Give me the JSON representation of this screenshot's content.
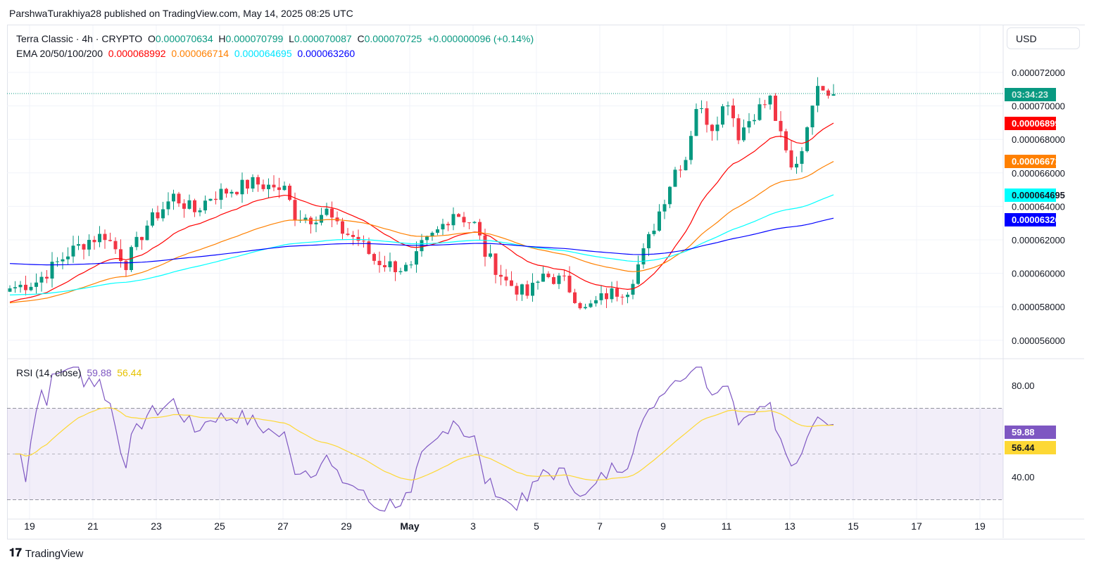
{
  "header": {
    "published": "ParshwaTurakhiya28 published on TradingView.com, May 14, 2025 08:25 UTC"
  },
  "legend": {
    "symbol": "Terra Classic · 4h · CRYPTO",
    "o_label": "O",
    "o": "0.000070634",
    "h_label": "H",
    "h": "0.000070799",
    "l_label": "L",
    "l": "0.000070087",
    "c_label": "C",
    "c": "0.000070725",
    "change": "+0.000000096 (+0.14%)",
    "ema_label": "EMA 20/50/100/200",
    "ema20": "0.000068992",
    "ema50": "0.000066714",
    "ema100": "0.000064695",
    "ema200": "0.000063260"
  },
  "currency": "USD",
  "countdown": "03:34:23",
  "colors": {
    "up": "#089981",
    "down": "#f23645",
    "ema20": "#ff0000",
    "ema50": "#ff8000",
    "ema100": "#00ffff",
    "ema200": "#0000ff",
    "rsi": "#7e57c2",
    "rsi_ma": "#fdd835"
  },
  "rsi": {
    "label": "RSI (14, close)",
    "value": "59.88",
    "ma": "56.44",
    "ticks": [
      "80.00",
      "40.00"
    ]
  },
  "chart_data": {
    "type": "candlestick",
    "unit": "1e-6 USD",
    "price_ticks": [
      "0.000072000",
      "0.000070000",
      "0.000068000",
      "0.000066000",
      "0.000064000",
      "0.000062000",
      "0.000060000",
      "0.000058000",
      "0.000056000"
    ],
    "x_ticks": [
      "19",
      "21",
      "23",
      "25",
      "27",
      "29",
      "May",
      "3",
      "5",
      "7",
      "9",
      "11",
      "13",
      "15",
      "17",
      "19"
    ],
    "close_keypoints": [
      [
        0,
        59.1
      ],
      [
        5,
        59.5
      ],
      [
        11,
        61.2
      ],
      [
        15,
        62
      ],
      [
        18,
        62.3
      ],
      [
        22,
        60.6
      ],
      [
        26,
        62.9
      ],
      [
        29,
        63.9
      ],
      [
        31,
        64.6
      ],
      [
        35,
        63.7
      ],
      [
        38,
        64.6
      ],
      [
        42,
        65
      ],
      [
        46,
        65.4
      ],
      [
        52,
        65
      ],
      [
        54,
        63.5
      ],
      [
        57,
        63.3
      ],
      [
        60,
        63.7
      ],
      [
        62,
        62.7
      ],
      [
        66,
        62
      ],
      [
        69,
        60.8
      ],
      [
        73,
        60.4
      ],
      [
        76,
        60.2
      ],
      [
        78,
        61.6
      ],
      [
        81,
        62.5
      ],
      [
        84,
        63.7
      ],
      [
        88,
        62.9
      ],
      [
        90,
        61.2
      ],
      [
        94,
        59.5
      ],
      [
        98,
        58.7
      ],
      [
        101,
        59.9
      ],
      [
        105,
        59.5
      ],
      [
        109,
        57.8
      ],
      [
        113,
        58.7
      ],
      [
        117,
        59.1
      ],
      [
        120,
        61.2
      ],
      [
        123,
        63.7
      ],
      [
        126,
        66.2
      ],
      [
        128,
        66.9
      ],
      [
        130,
        70
      ],
      [
        133,
        68.8
      ],
      [
        136,
        70.4
      ],
      [
        138,
        68.3
      ],
      [
        141,
        69.6
      ],
      [
        144,
        70.4
      ],
      [
        146,
        68.1
      ],
      [
        148,
        66.2
      ],
      [
        150,
        67.3
      ],
      [
        152,
        70.4
      ],
      [
        154,
        71.3
      ],
      [
        156,
        70.7
      ]
    ]
  }
}
